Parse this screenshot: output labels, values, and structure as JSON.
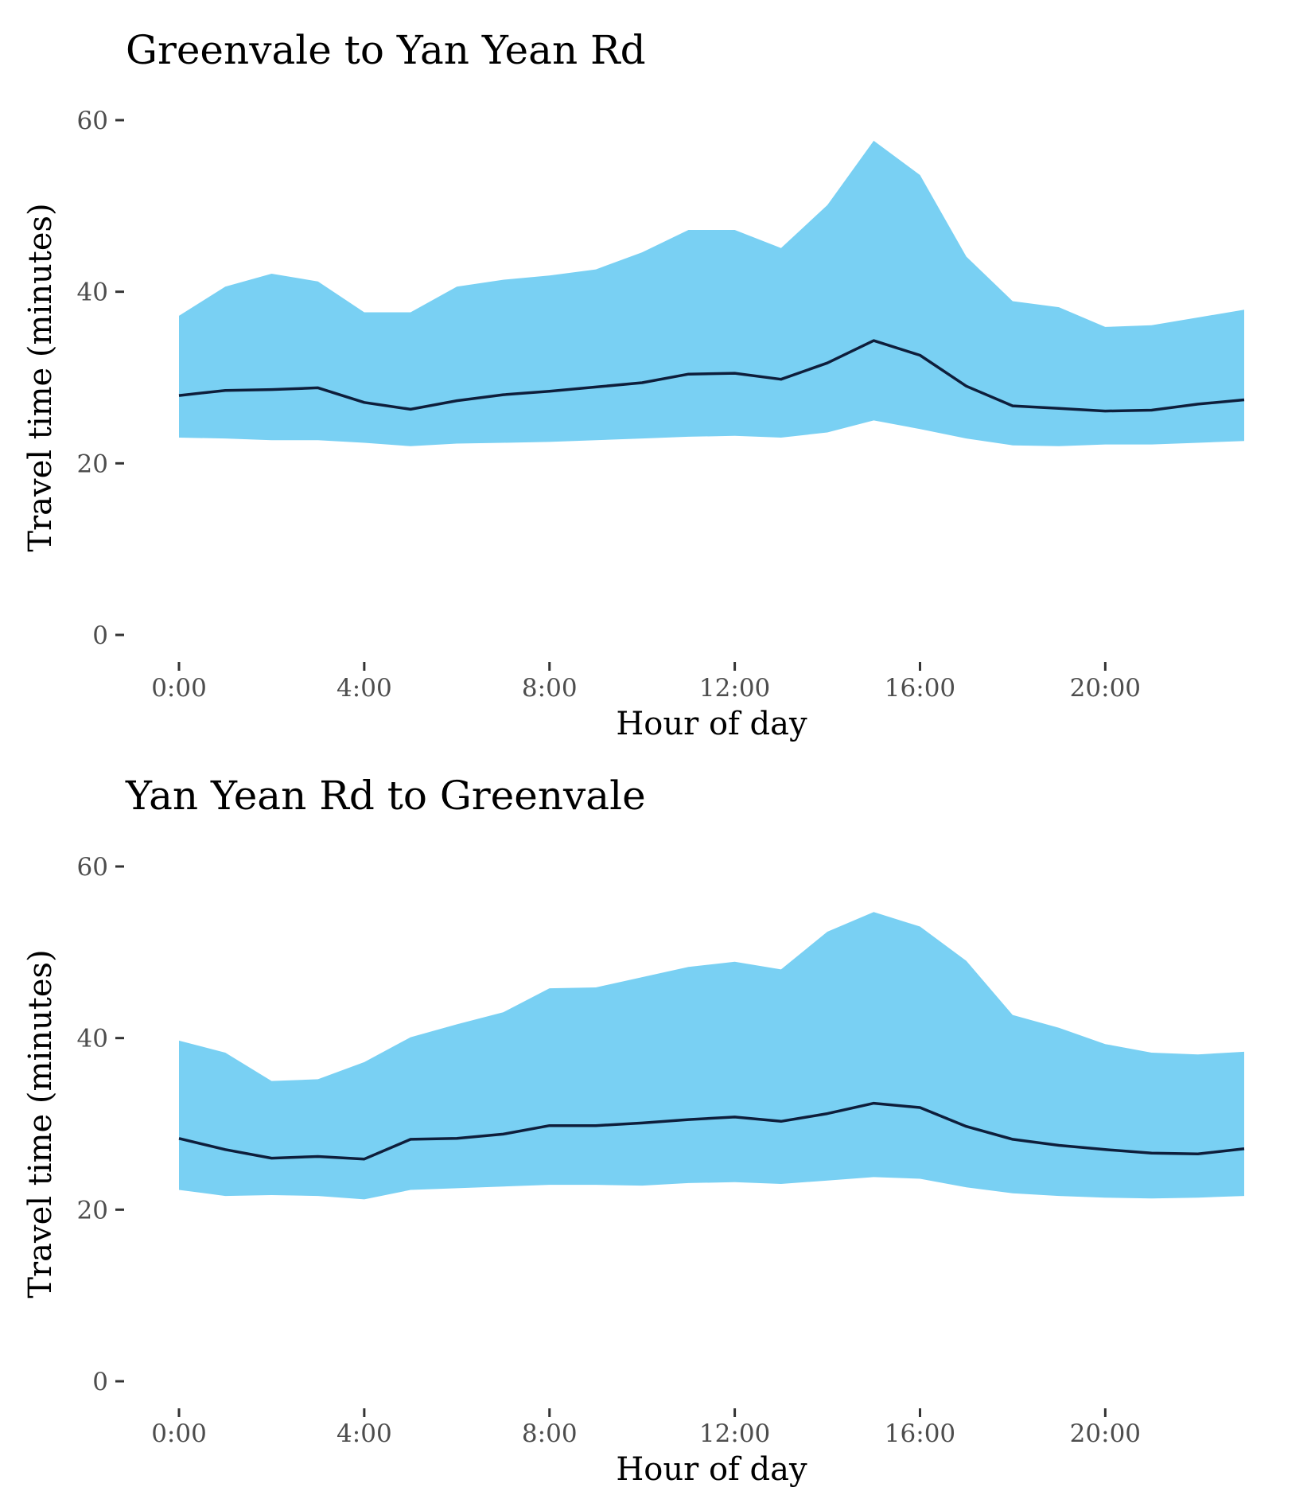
{
  "colors": {
    "band": "#79D0F3",
    "line": "#0E1E3B",
    "tick": "#333333",
    "tick_text": "#4D4D4D"
  },
  "chart_data": [
    {
      "type": "area",
      "title": "Greenvale to Yan Yean Rd",
      "xlabel": "Hour of day",
      "ylabel": "Travel time (minutes)",
      "ylim": [
        0,
        60
      ],
      "xlim": [
        0,
        23
      ],
      "x_ticks": [
        "0:00",
        "4:00",
        "8:00",
        "12:00",
        "16:00",
        "20:00"
      ],
      "y_ticks": [
        "0",
        "20",
        "40",
        "60"
      ],
      "grid": false,
      "x": [
        0,
        1,
        2,
        3,
        4,
        5,
        6,
        7,
        8,
        9,
        10,
        11,
        12,
        13,
        14,
        15,
        16,
        17,
        18,
        19,
        20,
        21,
        22,
        23
      ],
      "series": [
        {
          "role": "upper",
          "values": [
            37.2,
            40.6,
            42.1,
            41.2,
            37.6,
            37.6,
            40.6,
            41.4,
            41.9,
            42.6,
            44.6,
            47.2,
            47.2,
            45.1,
            50.1,
            57.6,
            53.6,
            44.1,
            38.9,
            38.2,
            35.9,
            36.1,
            37.0,
            37.9
          ]
        },
        {
          "role": "median",
          "values": [
            27.9,
            28.5,
            28.6,
            28.8,
            27.1,
            26.3,
            27.3,
            28.0,
            28.4,
            28.9,
            29.4,
            30.4,
            30.5,
            29.8,
            31.7,
            34.3,
            32.6,
            29.0,
            26.7,
            26.4,
            26.1,
            26.2,
            26.9,
            27.4
          ]
        },
        {
          "role": "lower",
          "values": [
            23.0,
            22.9,
            22.7,
            22.7,
            22.4,
            22.0,
            22.3,
            22.4,
            22.5,
            22.7,
            22.9,
            23.1,
            23.2,
            23.0,
            23.6,
            25.0,
            24.0,
            22.9,
            22.1,
            22.0,
            22.2,
            22.2,
            22.4,
            22.6
          ]
        }
      ]
    },
    {
      "type": "area",
      "title": "Yan Yean Rd to Greenvale",
      "xlabel": "Hour of day",
      "ylabel": "Travel time (minutes)",
      "ylim": [
        0,
        60
      ],
      "xlim": [
        0,
        23
      ],
      "x_ticks": [
        "0:00",
        "4:00",
        "8:00",
        "12:00",
        "16:00",
        "20:00"
      ],
      "y_ticks": [
        "0",
        "20",
        "40",
        "60"
      ],
      "grid": false,
      "x": [
        0,
        1,
        2,
        3,
        4,
        5,
        6,
        7,
        8,
        9,
        10,
        11,
        12,
        13,
        14,
        15,
        16,
        17,
        18,
        19,
        20,
        21,
        22,
        23
      ],
      "series": [
        {
          "role": "upper",
          "values": [
            39.7,
            38.3,
            35.0,
            35.2,
            37.2,
            40.1,
            41.6,
            43.0,
            45.8,
            45.9,
            47.1,
            48.3,
            48.9,
            48.0,
            52.4,
            54.7,
            53.0,
            49.0,
            42.7,
            41.2,
            39.3,
            38.3,
            38.1,
            38.4
          ]
        },
        {
          "role": "median",
          "values": [
            28.3,
            27.0,
            26.0,
            26.2,
            25.9,
            28.2,
            28.3,
            28.8,
            29.8,
            29.8,
            30.1,
            30.5,
            30.8,
            30.3,
            31.2,
            32.4,
            31.9,
            29.7,
            28.2,
            27.5,
            27.0,
            26.6,
            26.5,
            27.1
          ]
        },
        {
          "role": "lower",
          "values": [
            22.3,
            21.6,
            21.7,
            21.6,
            21.2,
            22.3,
            22.5,
            22.7,
            22.9,
            22.9,
            22.8,
            23.1,
            23.2,
            23.0,
            23.4,
            23.8,
            23.6,
            22.6,
            21.9,
            21.6,
            21.4,
            21.3,
            21.4,
            21.6
          ]
        }
      ]
    }
  ]
}
